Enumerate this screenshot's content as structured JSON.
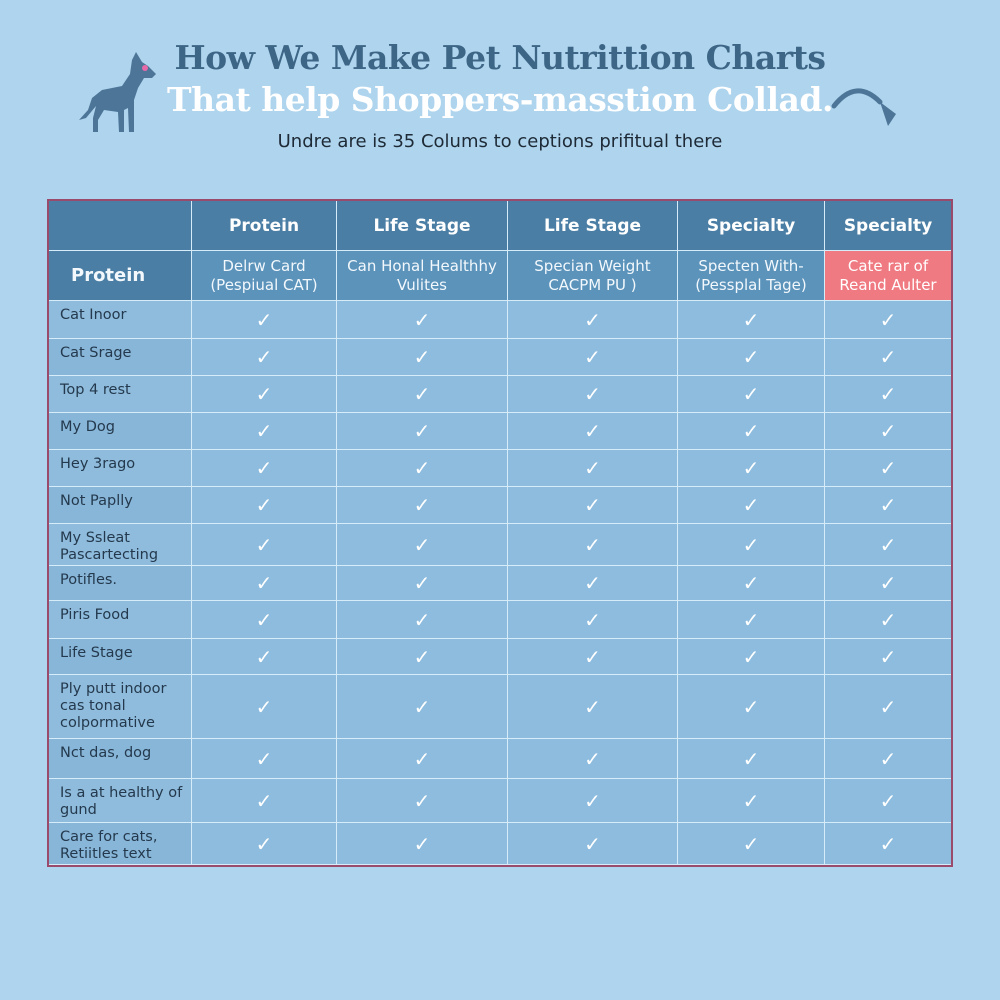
{
  "header": {
    "title_line1": "How We Make Pet Nutrittion Charts",
    "title_line2": "That help Shoppers-masstion Collad.",
    "subtitle": "Undre are is 35 Colums to ceptions prifitual there"
  },
  "colors": {
    "background": "#aed4ee",
    "header": "#4a7ea4",
    "highlight": "#f57b80",
    "title": "#3d6585"
  },
  "table": {
    "top_headers": [
      "",
      "Protein",
      "Life Stage",
      "Life Stage",
      "Specialty",
      "Specialty"
    ],
    "sub_headers": [
      "Protein",
      "Delrw Card (Pespiual CAT)",
      "Can Honal Healthhy Vulites",
      "Specian Weight CACPM PU )",
      "Specten With- (Pessplal Tage)",
      "Cate rar of Reand Aulter"
    ],
    "highlighted_column": 5,
    "check_icon": "check-icon",
    "check_symbol": "✓",
    "rows": [
      {
        "label": "Cat Inoor",
        "checks": [
          true,
          true,
          true,
          true,
          true
        ]
      },
      {
        "label": "Cat Srage",
        "checks": [
          true,
          true,
          true,
          true,
          true
        ]
      },
      {
        "label": "Top 4 rest",
        "checks": [
          true,
          true,
          true,
          true,
          true
        ]
      },
      {
        "label": "My Dog",
        "checks": [
          true,
          true,
          true,
          true,
          true
        ]
      },
      {
        "label": "Hey 3rago",
        "checks": [
          true,
          true,
          true,
          true,
          true
        ]
      },
      {
        "label": "Not Paplly",
        "checks": [
          true,
          true,
          true,
          true,
          true
        ]
      },
      {
        "label": "My Ssleat Pascartecting",
        "checks": [
          true,
          true,
          true,
          true,
          true
        ]
      },
      {
        "label": "Potifles.",
        "checks": [
          true,
          true,
          true,
          true,
          true
        ]
      },
      {
        "label": "Piris Food",
        "checks": [
          true,
          true,
          true,
          true,
          true
        ]
      },
      {
        "label": "Life Stage",
        "checks": [
          true,
          true,
          true,
          true,
          true
        ]
      },
      {
        "label": "Ply putt indoor cas tonal colpormative",
        "checks": [
          true,
          true,
          true,
          true,
          true
        ]
      },
      {
        "label": "Nct das, dog",
        "checks": [
          true,
          true,
          true,
          true,
          true
        ]
      },
      {
        "label": "Is a at healthy of gund",
        "checks": [
          true,
          true,
          true,
          true,
          true
        ]
      },
      {
        "label": "Care for cats, Retiitles text",
        "checks": [
          true,
          true,
          true,
          true,
          true
        ]
      }
    ]
  }
}
